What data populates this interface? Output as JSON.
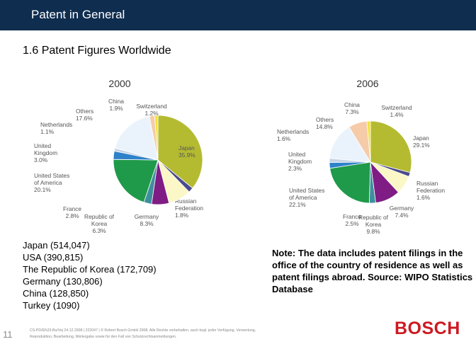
{
  "header": {
    "title": "Patent in General"
  },
  "section_title": "1.6 Patent Figures Worldwide",
  "charts": [
    {
      "year": "2000",
      "slices": [
        {
          "label": [
            "Japan",
            "35.9%"
          ],
          "value": 35.9,
          "color": "#b4bb31"
        },
        {
          "label": [
            "Russian",
            "Federation",
            "1.8%"
          ],
          "value": 1.8,
          "color": "#4a4a8c"
        },
        {
          "label": [
            "Germany",
            "8.3%"
          ],
          "value": 8.3,
          "color": "#fbf7c7"
        },
        {
          "label": [
            "Republic of",
            "Korea",
            "6.3%"
          ],
          "value": 6.3,
          "color": "#7f1d84"
        },
        {
          "label": [
            "France",
            "2.8%"
          ],
          "value": 2.8,
          "color": "#3f8e9e"
        },
        {
          "label": [
            "United States",
            "of America",
            "20.1%"
          ],
          "value": 20.1,
          "color": "#1f9a4b"
        },
        {
          "label": [
            "United",
            "Kingdom",
            "3.0%"
          ],
          "value": 3.0,
          "color": "#2e82c9"
        },
        {
          "label": [
            "Netherlands",
            "1.1%"
          ],
          "value": 1.1,
          "color": "#c6d3e6"
        },
        {
          "label": [
            "Others",
            "17.6%"
          ],
          "value": 17.6,
          "color": "#eaf3fb"
        },
        {
          "label": [
            "China",
            "1.9%"
          ],
          "value": 1.9,
          "color": "#f6cba8"
        },
        {
          "label": [
            "Switzerland",
            "1.2%"
          ],
          "value": 1.2,
          "color": "#f2e23b"
        }
      ]
    },
    {
      "year": "2006",
      "slices": [
        {
          "label": [
            "Japan",
            "29.1%"
          ],
          "value": 29.1,
          "color": "#b4bb31"
        },
        {
          "label": [
            "Russian",
            "Federation",
            "1.6%"
          ],
          "value": 1.6,
          "color": "#4a4a8c"
        },
        {
          "label": [
            "Germany",
            "7.4%"
          ],
          "value": 7.4,
          "color": "#fbf7c7"
        },
        {
          "label": [
            "Republic of",
            "Korea",
            "9.8%"
          ],
          "value": 9.8,
          "color": "#7f1d84"
        },
        {
          "label": [
            "France",
            "2.5%"
          ],
          "value": 2.5,
          "color": "#3f8e9e"
        },
        {
          "label": [
            "United States",
            "of America",
            "22.1%"
          ],
          "value": 22.1,
          "color": "#1f9a4b"
        },
        {
          "label": [
            "United",
            "Kingdom",
            "2.3%"
          ],
          "value": 2.3,
          "color": "#2e82c9"
        },
        {
          "label": [
            "Netherlands",
            "1.6%"
          ],
          "value": 1.6,
          "color": "#c6d3e6"
        },
        {
          "label": [
            "Others",
            "14.8%"
          ],
          "value": 14.8,
          "color": "#eaf3fb"
        },
        {
          "label": [
            "China",
            "7.3%"
          ],
          "value": 7.3,
          "color": "#f6cba8"
        },
        {
          "label": [
            "Switzerland",
            "1.4%"
          ],
          "value": 1.4,
          "color": "#f2e23b"
        }
      ]
    }
  ],
  "filings_list": [
    "Japan (514,047)",
    "USA (390,815)",
    "The Republic of Korea (172,709)",
    "Germany (130,806)",
    "China (128,850)",
    "Turkey (1090)"
  ],
  "note": "Note: The data includes patent filings in the office of the country of residence as well as patent filings abroad. Source: WIPO Statistics Database",
  "page_number": "11",
  "footer_lines": [
    "CS-PD/ENJ3-Bu/Vej 24.12.2008 | 222047 | © Robert Bosch GmbH 2008. Alle Rechte vorbehalten, auch bzgl. jeder Verfügung, Verwertung,",
    "Reproduktion, Bearbeitung, Weitergabe sowie für den Fall von Schutzrechtsanmeldungen."
  ],
  "logo_text": "BOSCH"
}
